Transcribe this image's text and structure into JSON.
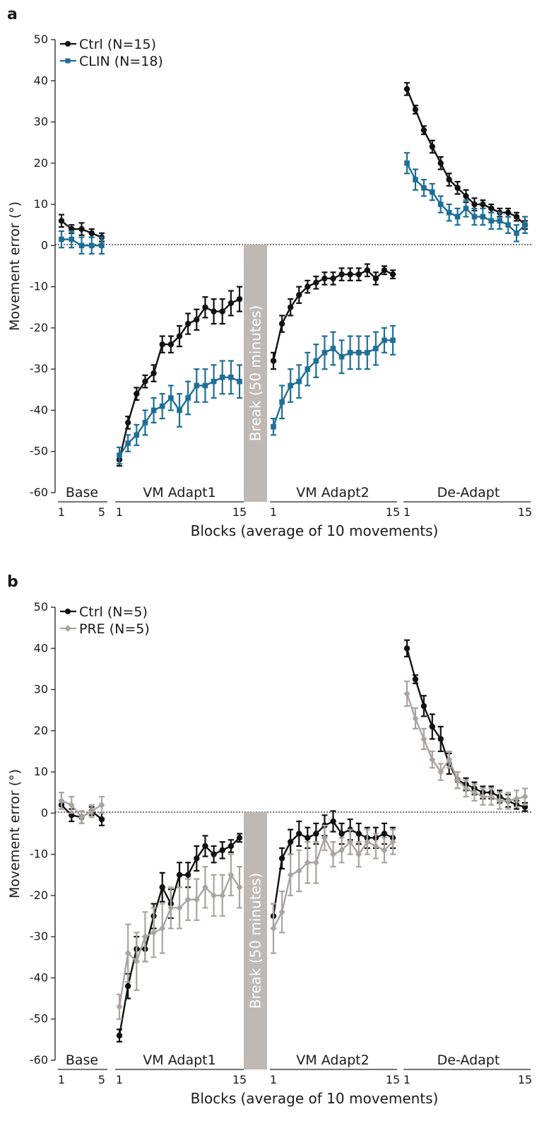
{
  "chart_data": [
    {
      "type": "line",
      "panel_label": "a",
      "ylabel": "Movement error (°)",
      "xlabel": "Blocks (average of 10 movements)",
      "ylim": [
        -60,
        50
      ],
      "yticks": [
        50,
        40,
        30,
        20,
        10,
        0,
        -10,
        -20,
        -30,
        -40,
        -50,
        -60
      ],
      "phases": [
        "Base",
        "VM Adapt1",
        "VM Adapt2",
        "De-Adapt"
      ],
      "phase_ticks": [
        [
          "1",
          "5"
        ],
        [
          "1",
          "15"
        ],
        [
          "1",
          "15"
        ],
        [
          "1",
          "15"
        ]
      ],
      "break_label": "Break (50 minutes)",
      "zero_line": true,
      "legend_position": "top-left",
      "series": [
        {
          "name": "Ctrl (N=15)",
          "color": "#111111",
          "marker": "circle",
          "values": {
            "Base": [
              6,
              4,
              4,
              3,
              2
            ],
            "VM Adapt1": [
              -52,
              -43,
              -36,
              -33,
              -31,
              -24,
              -24,
              -22,
              -19,
              -18,
              -15,
              -16,
              -16,
              -14,
              -13
            ],
            "VM Adapt2": [
              -28,
              -19,
              -15,
              -12,
              -10,
              -9,
              -8,
              -8,
              -7,
              -7,
              -7,
              -6,
              -8,
              -6,
              -7
            ],
            "De-Adapt": [
              38,
              33,
              28,
              24,
              20,
              16,
              14,
              12,
              10,
              10,
              9,
              8,
              8,
              7,
              5
            ]
          },
          "errors": {
            "Base": [
              1.5,
              1,
              1.5,
              1,
              1
            ],
            "VM Adapt1": [
              1.5,
              1.5,
              1.5,
              1.5,
              2,
              2,
              2,
              2.5,
              2.5,
              2.5,
              2.5,
              3,
              3,
              3,
              3
            ],
            "VM Adapt2": [
              2,
              2,
              2,
              2,
              1.5,
              1.5,
              1.5,
              1.5,
              1.5,
              1.5,
              1.5,
              1.5,
              1.5,
              1,
              1
            ],
            "De-Adapt": [
              1.5,
              1,
              1,
              1.5,
              1.5,
              1.5,
              1.5,
              1.5,
              1.5,
              1,
              1,
              1,
              1,
              1,
              1
            ]
          }
        },
        {
          "name": "CLIN (N=18)",
          "color": "#1f6e96",
          "marker": "square",
          "values": {
            "Base": [
              1.5,
              1.5,
              0,
              0,
              0
            ],
            "VM Adapt1": [
              -51,
              -48,
              -46,
              -43,
              -40,
              -39,
              -37,
              -40,
              -37,
              -34,
              -34,
              -33,
              -32,
              -32,
              -33
            ],
            "VM Adapt2": [
              -44,
              -38,
              -34,
              -33,
              -30,
              -28,
              -26,
              -25,
              -27,
              -26,
              -26,
              -26,
              -25,
              -23,
              -23
            ],
            "De-Adapt": [
              20,
              16,
              14,
              13,
              10,
              8,
              7,
              9,
              7,
              7,
              6,
              6,
              5,
              3,
              5
            ]
          },
          "errors": {
            "Base": [
              2,
              2,
              2,
              2,
              2
            ],
            "VM Adapt1": [
              2,
              2,
              2.5,
              3,
              3,
              3,
              3,
              4,
              4,
              4,
              4,
              4,
              4,
              4,
              4
            ],
            "VM Adapt2": [
              2,
              4,
              4,
              4,
              4,
              4,
              4,
              4,
              4,
              4,
              4,
              4,
              4,
              3,
              3.5
            ],
            "De-Adapt": [
              2.5,
              2.5,
              2,
              2,
              2,
              2,
              2,
              2,
              2,
              2,
              2,
              2,
              2,
              2,
              2
            ]
          }
        }
      ]
    },
    {
      "type": "line",
      "panel_label": "b",
      "ylabel": "Movement error (°)",
      "xlabel": "Blocks (average of 10 movements)",
      "ylim": [
        -60,
        50
      ],
      "yticks": [
        50,
        40,
        30,
        20,
        10,
        0,
        -10,
        -20,
        -30,
        -40,
        -50,
        -60
      ],
      "phases": [
        "Base",
        "VM Adapt1",
        "VM Adapt2",
        "De-Adapt"
      ],
      "phase_ticks": [
        [
          "1",
          "5"
        ],
        [
          "1",
          "15"
        ],
        [
          "1",
          "15"
        ],
        [
          "1",
          "15"
        ]
      ],
      "break_label": "Break (50 minutes)",
      "zero_line": true,
      "legend_position": "top-left",
      "series": [
        {
          "name": "Ctrl (N=5)",
          "color": "#111111",
          "marker": "circle",
          "values": {
            "Base": [
              2,
              -0.5,
              -1,
              0.5,
              -1.5
            ],
            "VM Adapt1": [
              -54,
              -42,
              -33,
              -33,
              -25,
              -18,
              -22,
              -15,
              -15,
              -11,
              -8,
              -10,
              -9,
              -8,
              -6
            ],
            "VM Adapt2": [
              -25,
              -11,
              -7,
              -5,
              -6,
              -5,
              -3,
              -2,
              -5,
              -4,
              -5,
              -6,
              -6,
              -5,
              -6
            ],
            "De-Adapt": [
              40,
              32.5,
              26,
              21,
              18,
              12,
              8,
              7,
              6,
              5,
              5,
              4,
              3,
              2,
              1.5
            ]
          },
          "errors": {
            "Base": [
              1,
              1.5,
              1.5,
              1,
              1.5
            ],
            "VM Adapt1": [
              1.5,
              3,
              3,
              3,
              3,
              3.5,
              3.5,
              3,
              3,
              3,
              2.5,
              2,
              2,
              1.5,
              1
            ],
            "VM Adapt2": [
              3,
              2.5,
              3,
              3,
              2.5,
              2.5,
              2.5,
              2.5,
              2.5,
              2.5,
              2.5,
              2.5,
              2.5,
              2.5,
              2.5
            ],
            "De-Adapt": [
              2,
              1,
              2.5,
              3,
              3,
              2.5,
              2,
              1.5,
              1.5,
              1.5,
              1.5,
              1.5,
              1.5,
              1,
              1
            ]
          }
        },
        {
          "name": "PRE (N=5)",
          "color": "#aba39e",
          "marker": "diamond",
          "values": {
            "Base": [
              3,
              2,
              -1,
              0.5,
              2
            ],
            "VM Adapt1": [
              -47,
              -34,
              -36,
              -30,
              -29,
              -28,
              -23,
              -23,
              -21,
              -21,
              -18,
              -20,
              -20,
              -15,
              -18
            ],
            "VM Adapt2": [
              -28,
              -24,
              -15,
              -14,
              -12,
              -12,
              -6,
              -10,
              -9,
              -7,
              -10,
              -7,
              -8,
              -9,
              -7
            ],
            "De-Adapt": [
              29,
              23,
              18,
              13,
              10,
              13,
              8,
              6,
              5,
              4,
              4,
              3,
              3,
              3.5,
              4
            ]
          },
          "errors": {
            "Base": [
              2,
              2,
              1.5,
              1.5,
              2
            ],
            "VM Adapt1": [
              3,
              7,
              7,
              6,
              6,
              6,
              5,
              5,
              5,
              5,
              5,
              5,
              5,
              5,
              5
            ],
            "VM Adapt2": [
              6,
              5,
              5,
              5,
              5,
              5,
              3,
              3,
              3,
              3,
              3,
              3,
              3,
              3,
              3
            ],
            "De-Adapt": [
              3,
              2.5,
              2.5,
              2,
              2,
              2,
              2,
              2,
              2,
              2,
              2,
              2,
              2,
              2,
              2
            ]
          }
        }
      ]
    }
  ]
}
